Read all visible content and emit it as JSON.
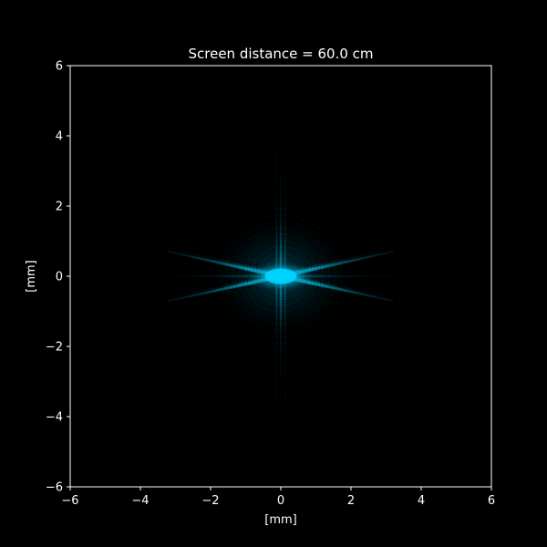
{
  "chart_data": {
    "type": "heatmap",
    "title": "Screen distance = 60.0 cm",
    "xlabel": "[mm]",
    "ylabel": "[mm]",
    "xlim": [
      -6,
      6
    ],
    "ylim": [
      -6,
      6
    ],
    "xticks": [
      -6,
      -4,
      -2,
      0,
      2,
      4,
      6
    ],
    "yticks": [
      -6,
      -4,
      -2,
      0,
      2,
      4,
      6
    ],
    "grid": false,
    "background_color": "#000000",
    "foreground_color": "#ffffff",
    "colormap": [
      "#000000",
      "#00d4ff"
    ],
    "pattern": {
      "center": [
        0,
        0
      ],
      "arms": [
        {
          "name": "diagonal-up",
          "slope": 0.22,
          "extent": 3.2
        },
        {
          "name": "diagonal-down",
          "slope": -0.22,
          "extent": 3.2
        },
        {
          "name": "vertical",
          "extent": 3.6
        },
        {
          "name": "horizontal",
          "extent": 4.0
        }
      ]
    }
  }
}
